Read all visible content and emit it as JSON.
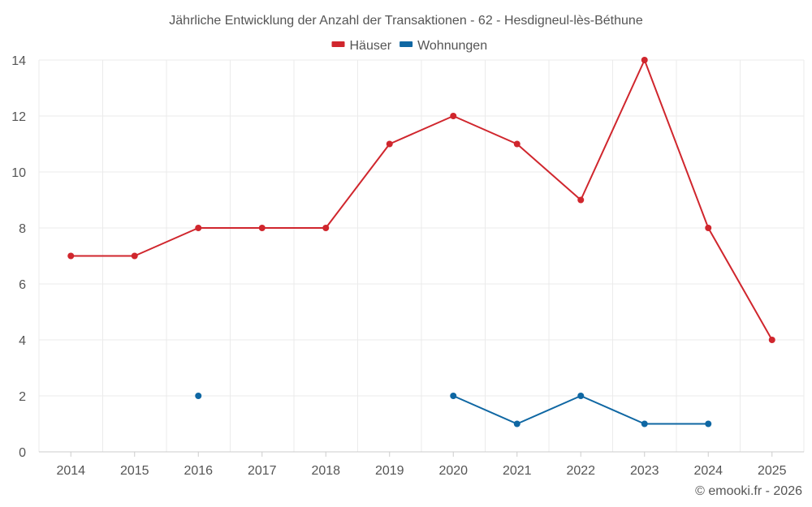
{
  "chart_data": {
    "type": "line",
    "title": "Jährliche Entwicklung der Anzahl der Transaktionen - 62 - Hesdigneul-lès-Béthune",
    "categories": [
      "2014",
      "2015",
      "2016",
      "2017",
      "2018",
      "2019",
      "2020",
      "2021",
      "2022",
      "2023",
      "2024",
      "2025"
    ],
    "ylim": [
      0,
      14
    ],
    "yticks": [
      0,
      2,
      4,
      6,
      8,
      10,
      12,
      14
    ],
    "grid": true,
    "legend_position": "top-center",
    "series": [
      {
        "name": "Häuser",
        "color": "#d0262d",
        "values": [
          7,
          7,
          8,
          8,
          8,
          11,
          12,
          11,
          9,
          14,
          8,
          4
        ]
      },
      {
        "name": "Wohnungen",
        "color": "#0f67a3",
        "values": [
          null,
          null,
          2,
          null,
          null,
          null,
          2,
          1,
          2,
          1,
          1,
          null
        ]
      }
    ]
  },
  "credit": "© emooki.fr - 2026"
}
